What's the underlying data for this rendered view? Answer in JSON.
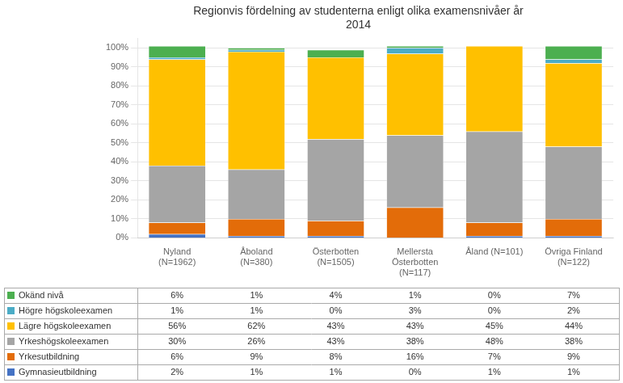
{
  "chart_data": {
    "type": "bar",
    "title": "Regionvis fördelning av studenterna enligt olika examensnivåer år\n2014",
    "categories": [
      "Nyland\n(N=1962)",
      "Åboland\n(N=380)",
      "Österbotten\n(N=1505)",
      "Mellersta\nÖsterbotten\n(N=117)",
      "Åland (N=101)",
      "Övriga Finland\n(N=122)"
    ],
    "series": [
      {
        "name": "Gymnasieutbildning",
        "color": "#4472C4",
        "values": [
          2,
          1,
          1,
          0,
          1,
          1
        ],
        "value_labels": [
          "2%",
          "1%",
          "1%",
          "0%",
          "1%",
          "1%"
        ]
      },
      {
        "name": "Yrkesutbildning",
        "color": "#E36C09",
        "values": [
          6,
          9,
          8,
          16,
          7,
          9
        ],
        "value_labels": [
          "6%",
          "9%",
          "8%",
          "16%",
          "7%",
          "9%"
        ]
      },
      {
        "name": "Yrkeshögskoleexamen",
        "color": "#A5A5A5",
        "values": [
          30,
          26,
          43,
          38,
          48,
          38
        ],
        "value_labels": [
          "30%",
          "26%",
          "43%",
          "38%",
          "48%",
          "38%"
        ]
      },
      {
        "name": "Lägre högskoleexamen",
        "color": "#FFC000",
        "values": [
          56,
          62,
          43,
          43,
          45,
          44
        ],
        "value_labels": [
          "56%",
          "62%",
          "43%",
          "43%",
          "45%",
          "44%"
        ]
      },
      {
        "name": "Högre högskoleexamen",
        "color": "#4BACC6",
        "values": [
          1,
          1,
          0,
          3,
          0,
          2
        ],
        "value_labels": [
          "1%",
          "1%",
          "0%",
          "3%",
          "0%",
          "2%"
        ]
      },
      {
        "name": "Okänd nivå",
        "color": "#4CAF50",
        "values": [
          6,
          1,
          4,
          1,
          0,
          7
        ],
        "value_labels": [
          "6%",
          "1%",
          "4%",
          "1%",
          "0%",
          "7%"
        ]
      }
    ],
    "stacked": true,
    "ylim": [
      0,
      105
    ],
    "yticks": [
      {
        "value": 0,
        "label": "0%"
      },
      {
        "value": 10,
        "label": "10%"
      },
      {
        "value": 20,
        "label": "20%"
      },
      {
        "value": 30,
        "label": "30%"
      },
      {
        "value": 40,
        "label": "40%"
      },
      {
        "value": 50,
        "label": "50%"
      },
      {
        "value": 60,
        "label": "60%"
      },
      {
        "value": 70,
        "label": "70%"
      },
      {
        "value": 80,
        "label": "80%"
      },
      {
        "value": 90,
        "label": "90%"
      },
      {
        "value": 100,
        "label": "100%"
      }
    ],
    "grid": true,
    "legend": "bottom",
    "data_labels": true
  }
}
